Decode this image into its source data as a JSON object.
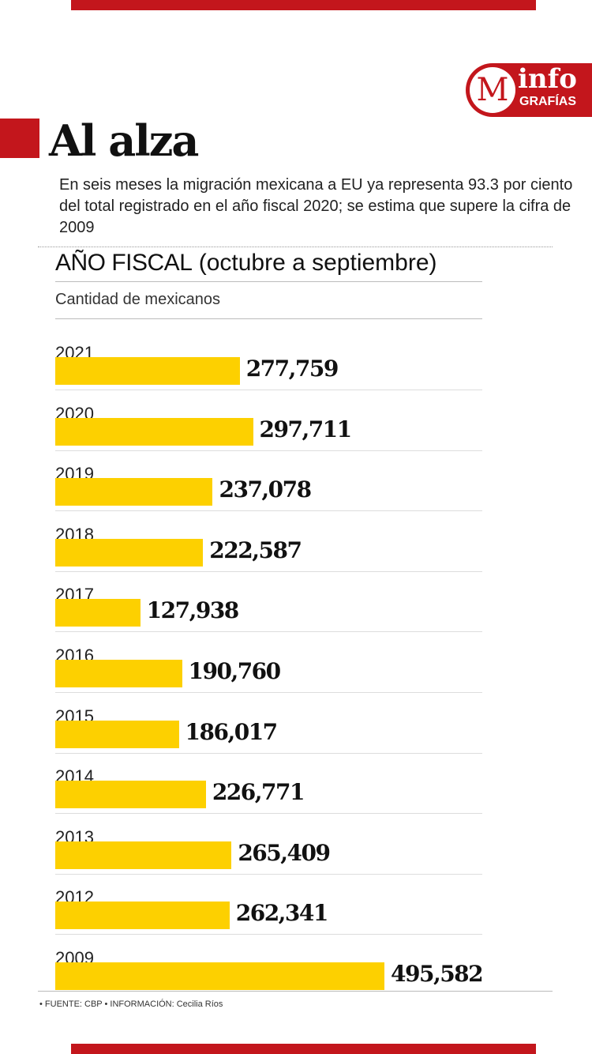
{
  "logo": {
    "letter": "M",
    "info": "info",
    "grafias": "GRAFÍAS"
  },
  "title": "Al alza",
  "subtitle": "En seis meses la migración mexicana a EU ya representa 93.3 por ciento del total registrado en el año fiscal 2020; se estima que supere la cifra de 2009",
  "chart_data": {
    "type": "bar",
    "orientation": "horizontal",
    "title": "AÑO FISCAL",
    "title_note": "(octubre a septiembre)",
    "ylabel": "Cantidad de mexicanos",
    "categories": [
      "2021",
      "2020",
      "2019",
      "2018",
      "2017",
      "2016",
      "2015",
      "2014",
      "2013",
      "2012",
      "2009"
    ],
    "values": [
      277759,
      297711,
      237078,
      222587,
      127938,
      190760,
      186017,
      226771,
      265409,
      262341,
      495582
    ],
    "value_labels": [
      "277,759",
      "297,711",
      "237,078",
      "222,587",
      "127,938",
      "190,760",
      "186,017",
      "226,771",
      "265,409",
      "262,341",
      "495,582"
    ],
    "bar_color": "#fdd000"
  },
  "footer": "• FUENTE: CBP • INFORMACIÓN: Cecilia Ríos"
}
